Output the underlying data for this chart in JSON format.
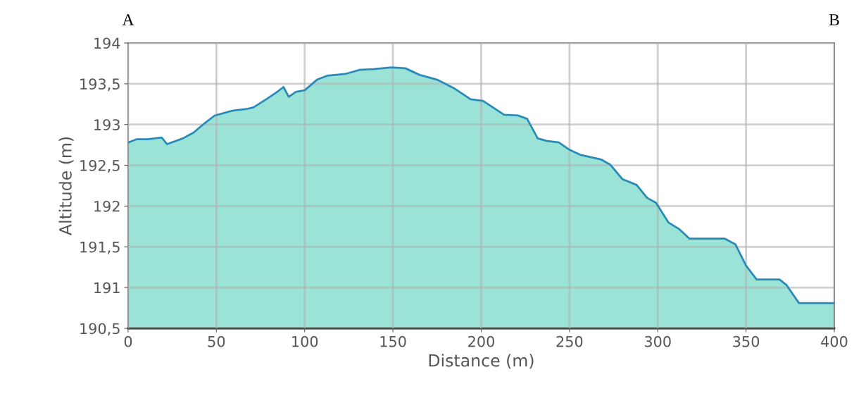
{
  "chart_data": {
    "type": "area",
    "xlabel": "Distance (m)",
    "ylabel": "Altitude (m)",
    "annotations": [
      "A",
      "B"
    ],
    "x": [
      0,
      5,
      11,
      19,
      22,
      31,
      37,
      43,
      49,
      59,
      67,
      71,
      79,
      85,
      88,
      91,
      95,
      100,
      107,
      113,
      123,
      131,
      139,
      149,
      157,
      165,
      175,
      185,
      194,
      201,
      213,
      221,
      226,
      232,
      237,
      244,
      250,
      256,
      268,
      273,
      280,
      288,
      294,
      299,
      306,
      312,
      318,
      338,
      344,
      350,
      356,
      369,
      373,
      380,
      400
    ],
    "series": [
      {
        "color": "#9be3d6",
        "values": [
          192.78,
          192.82,
          192.82,
          192.84,
          192.76,
          192.83,
          192.9,
          193.01,
          193.11,
          193.17,
          193.19,
          193.21,
          193.32,
          193.41,
          193.46,
          193.34,
          193.4,
          193.42,
          193.55,
          193.6,
          193.62,
          193.67,
          193.68,
          193.7,
          193.69,
          193.61,
          193.55,
          193.44,
          193.31,
          193.29,
          193.12,
          193.11,
          193.07,
          192.83,
          192.8,
          192.78,
          192.69,
          192.63,
          192.57,
          192.51,
          192.33,
          192.26,
          192.1,
          192.04,
          191.8,
          191.72,
          191.6,
          191.6,
          191.53,
          191.27,
          191.1,
          191.1,
          191.03,
          190.81,
          190.81
        ]
      }
    ],
    "xlim": [
      0,
      400
    ],
    "ylim": [
      190.5,
      194
    ],
    "xticks": [
      0,
      50,
      100,
      150,
      200,
      250,
      300,
      350,
      400
    ],
    "yticks": [
      {
        "value": 190.5,
        "label": "190,5"
      },
      191,
      {
        "value": 191.5,
        "label": "191,5"
      },
      192,
      {
        "value": 192.5,
        "label": "192,5"
      },
      193,
      {
        "value": 193.5,
        "label": "193,5"
      },
      194
    ],
    "grid": true,
    "legend": false
  }
}
